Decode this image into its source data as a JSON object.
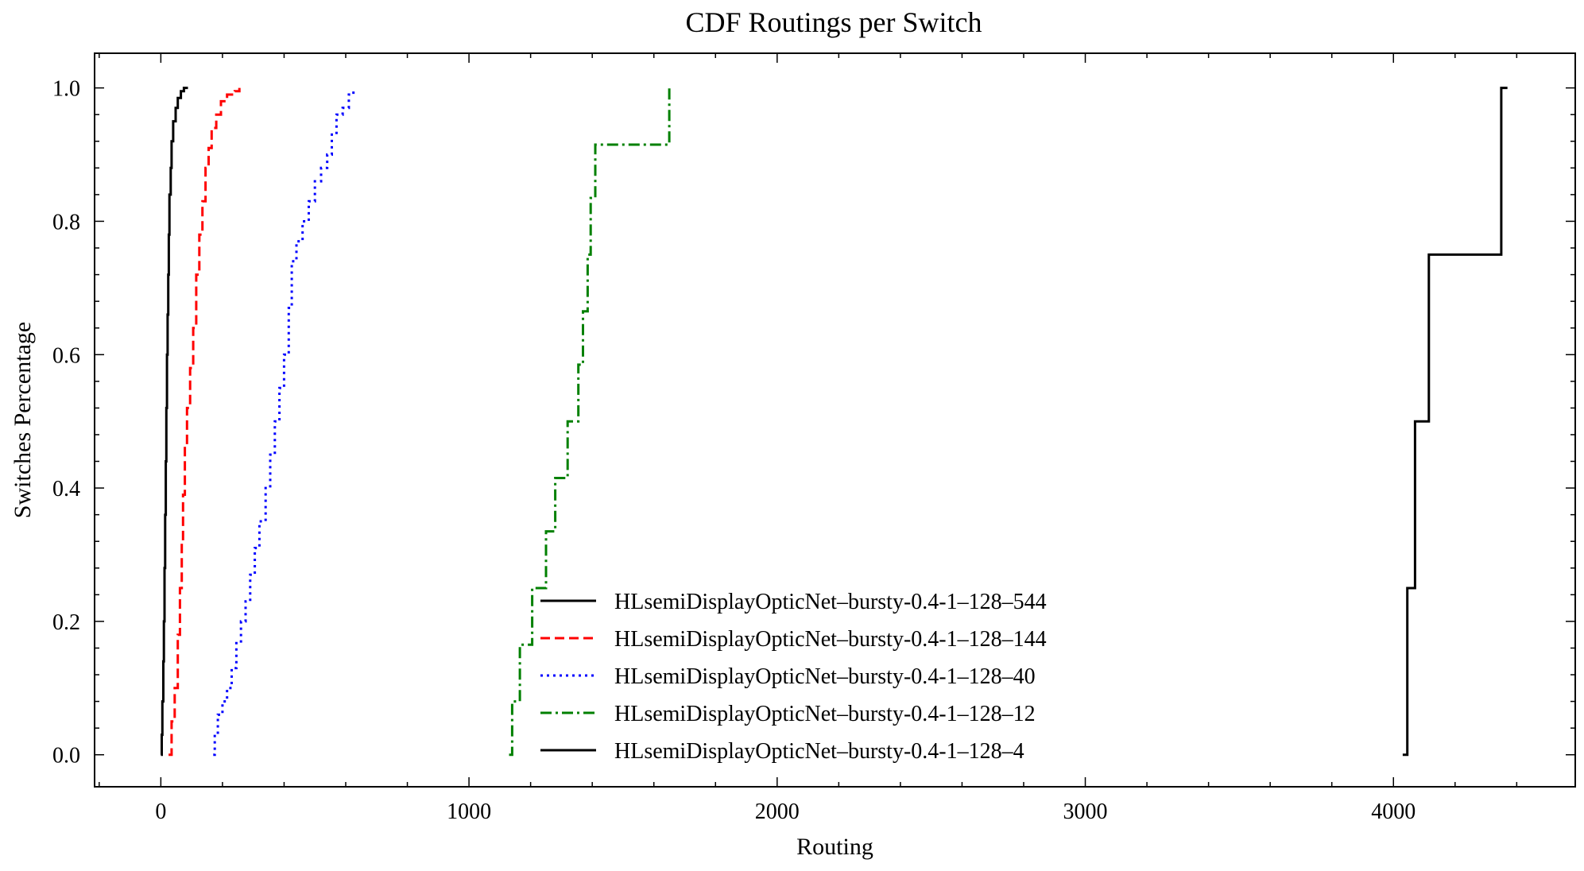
{
  "chart_data": {
    "type": "line",
    "subtype": "step-cdf",
    "title": "CDF Routings per Switch",
    "xlabel": "Routing",
    "ylabel": "Switches Percentage",
    "xlim": [
      -215,
      4590
    ],
    "ylim": [
      -0.048,
      1.052
    ],
    "xticks": [
      0,
      1000,
      2000,
      3000,
      4000
    ],
    "xtick_labels": [
      "0",
      "1000",
      "2000",
      "3000",
      "4000"
    ],
    "yticks": [
      0.0,
      0.2,
      0.4,
      0.6,
      0.8,
      1.0
    ],
    "ytick_labels": [
      "0.0",
      "0.2",
      "0.4",
      "0.6",
      "0.8",
      "1.0"
    ],
    "grid": false,
    "legend_position": "lower-center",
    "series": [
      {
        "name": "HLsemiDisplayOpticNet–bursty-0.4-1–128–544",
        "color": "#000000",
        "dash": "solid",
        "points": [
          [
            0,
            0.0
          ],
          [
            3,
            0.03
          ],
          [
            5,
            0.08
          ],
          [
            8,
            0.14
          ],
          [
            10,
            0.2
          ],
          [
            12,
            0.28
          ],
          [
            14,
            0.36
          ],
          [
            16,
            0.44
          ],
          [
            18,
            0.52
          ],
          [
            20,
            0.6
          ],
          [
            22,
            0.66
          ],
          [
            24,
            0.72
          ],
          [
            26,
            0.78
          ],
          [
            28,
            0.84
          ],
          [
            32,
            0.88
          ],
          [
            35,
            0.92
          ],
          [
            40,
            0.95
          ],
          [
            48,
            0.97
          ],
          [
            55,
            0.985
          ],
          [
            65,
            0.995
          ],
          [
            75,
            1.0
          ],
          [
            88,
            1.0
          ]
        ]
      },
      {
        "name": "HLsemiDisplayOpticNet–bursty-0.4-1–128–144",
        "color": "#ff0000",
        "dash": "dashed",
        "points": [
          [
            25,
            0.0
          ],
          [
            35,
            0.05
          ],
          [
            45,
            0.1
          ],
          [
            55,
            0.18
          ],
          [
            62,
            0.25
          ],
          [
            68,
            0.32
          ],
          [
            72,
            0.39
          ],
          [
            78,
            0.46
          ],
          [
            85,
            0.52
          ],
          [
            95,
            0.58
          ],
          [
            105,
            0.64
          ],
          [
            115,
            0.72
          ],
          [
            125,
            0.78
          ],
          [
            135,
            0.83
          ],
          [
            145,
            0.88
          ],
          [
            155,
            0.91
          ],
          [
            165,
            0.94
          ],
          [
            180,
            0.96
          ],
          [
            195,
            0.98
          ],
          [
            215,
            0.99
          ],
          [
            240,
            0.995
          ],
          [
            255,
            1.0
          ]
        ]
      },
      {
        "name": "HLsemiDisplayOpticNet–bursty-0.4-1–128–40",
        "color": "#0000ff",
        "dash": "dotted",
        "points": [
          [
            170,
            0.0
          ],
          [
            175,
            0.03
          ],
          [
            185,
            0.06
          ],
          [
            200,
            0.08
          ],
          [
            215,
            0.1
          ],
          [
            230,
            0.13
          ],
          [
            245,
            0.17
          ],
          [
            260,
            0.2
          ],
          [
            275,
            0.23
          ],
          [
            290,
            0.27
          ],
          [
            305,
            0.31
          ],
          [
            320,
            0.35
          ],
          [
            340,
            0.4
          ],
          [
            355,
            0.45
          ],
          [
            370,
            0.5
          ],
          [
            385,
            0.55
          ],
          [
            400,
            0.6
          ],
          [
            415,
            0.67
          ],
          [
            425,
            0.74
          ],
          [
            440,
            0.77
          ],
          [
            460,
            0.8
          ],
          [
            480,
            0.83
          ],
          [
            500,
            0.86
          ],
          [
            520,
            0.88
          ],
          [
            540,
            0.9
          ],
          [
            555,
            0.93
          ],
          [
            570,
            0.96
          ],
          [
            590,
            0.97
          ],
          [
            610,
            0.99
          ],
          [
            625,
            1.0
          ]
        ]
      },
      {
        "name": "HLsemiDisplayOpticNet–bursty-0.4-1–128–12",
        "color": "#008000",
        "dash": "dashdot",
        "points": [
          [
            1130,
            0.0
          ],
          [
            1140,
            0.08
          ],
          [
            1165,
            0.165
          ],
          [
            1205,
            0.25
          ],
          [
            1250,
            0.335
          ],
          [
            1280,
            0.415
          ],
          [
            1320,
            0.5
          ],
          [
            1355,
            0.585
          ],
          [
            1370,
            0.665
          ],
          [
            1385,
            0.75
          ],
          [
            1395,
            0.835
          ],
          [
            1410,
            0.915
          ],
          [
            1650,
            1.0
          ]
        ]
      },
      {
        "name": "HLsemiDisplayOpticNet–bursty-0.4-1–128–4",
        "color": "#000000",
        "dash": "solid",
        "points": [
          [
            4030,
            0.0
          ],
          [
            4045,
            0.25
          ],
          [
            4070,
            0.5
          ],
          [
            4115,
            0.75
          ],
          [
            4350,
            1.0
          ],
          [
            4370,
            1.0
          ]
        ]
      }
    ]
  }
}
